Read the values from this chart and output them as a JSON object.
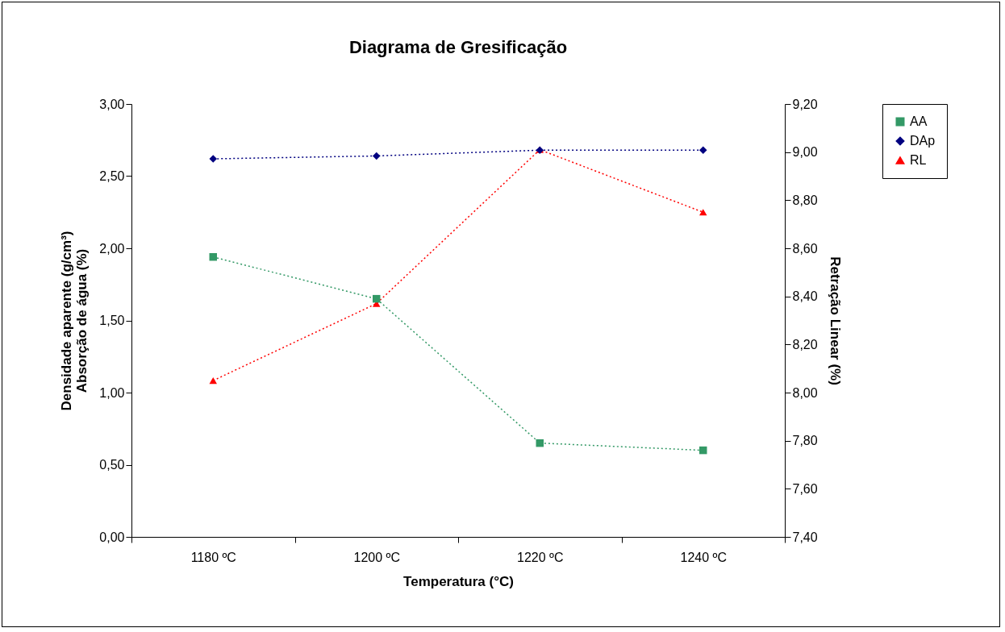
{
  "chart_data": {
    "type": "line",
    "title": "Diagrama de Gresificação",
    "xlabel": "Temperatura (°C)",
    "ylabel": "Densidade aparente (g/cm³)\nAbsorção de água (%)",
    "y2label": "Retração Linear (%)",
    "categories": [
      "1180 ºC",
      "1200 ºC",
      "1220 ºC",
      "1240 ºC"
    ],
    "series": [
      {
        "name": "AA",
        "color": "#339966",
        "marker": "square",
        "values": [
          1.94,
          1.65,
          0.65,
          0.6
        ]
      },
      {
        "name": "DAp",
        "color": "#000080",
        "marker": "diamond",
        "values": [
          2.62,
          2.64,
          2.68,
          2.68
        ]
      },
      {
        "name": "RL",
        "color": "#ff0000",
        "marker": "triangle",
        "axis": "y2",
        "values": [
          8.05,
          8.37,
          9.01,
          8.75
        ]
      }
    ],
    "ylim": [
      0,
      3
    ],
    "yticks": [
      {
        "value": 0,
        "label": "0,00"
      },
      {
        "value": 0.5,
        "label": "0,50"
      },
      {
        "value": 1,
        "label": "1,00"
      },
      {
        "value": 1.5,
        "label": "1,50"
      },
      {
        "value": 2,
        "label": "2,00"
      },
      {
        "value": 2.5,
        "label": "2,50"
      },
      {
        "value": 3,
        "label": "3,00"
      }
    ],
    "y2lim": [
      7.4,
      9.2
    ],
    "y2ticks": [
      {
        "value": 7.4,
        "label": "7,40"
      },
      {
        "value": 7.6,
        "label": "7,60"
      },
      {
        "value": 7.8,
        "label": "7,80"
      },
      {
        "value": 8,
        "label": "8,00"
      },
      {
        "value": 8.2,
        "label": "8,20"
      },
      {
        "value": 8.4,
        "label": "8,40"
      },
      {
        "value": 8.6,
        "label": "8,60"
      },
      {
        "value": 8.8,
        "label": "8,80"
      },
      {
        "value": 9,
        "label": "9,00"
      },
      {
        "value": 9.2,
        "label": "9,20"
      }
    ],
    "grid": false,
    "legend": "right",
    "line_style": "dotted"
  }
}
